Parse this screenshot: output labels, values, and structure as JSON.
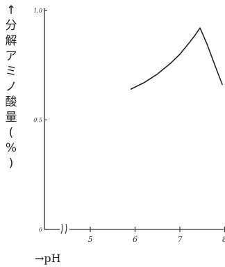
{
  "chart_data": {
    "type": "line",
    "ylabel": "↑分解アミノ酸量(%)",
    "xlabel": "→pH",
    "x_ticks": [
      "5",
      "6",
      "7",
      "8"
    ],
    "y_ticks": [
      "0",
      "0.5",
      "1.0"
    ],
    "xlim": [
      4.0,
      8.0
    ],
    "ylim": [
      0,
      1.0
    ],
    "axis_break": "≈",
    "grid": false,
    "series": [
      {
        "x": [
          5.9,
          6.2,
          6.5,
          6.8,
          7.0,
          7.2,
          7.35,
          7.45,
          7.6,
          7.8,
          7.95
        ],
        "y": [
          0.64,
          0.67,
          0.71,
          0.76,
          0.8,
          0.85,
          0.89,
          0.92,
          0.85,
          0.74,
          0.66
        ]
      }
    ]
  }
}
